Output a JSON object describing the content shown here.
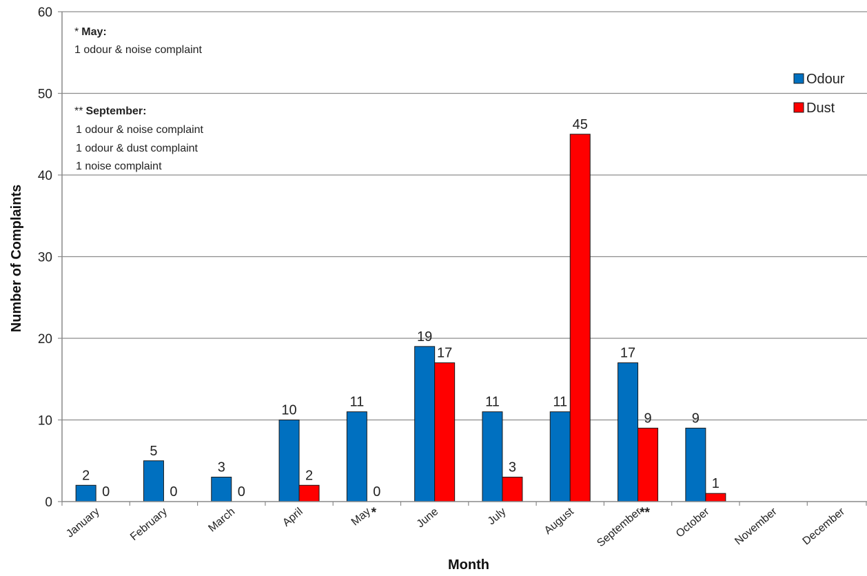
{
  "chart_data": {
    "type": "bar",
    "title": "",
    "xlabel": "Month",
    "ylabel": "Number of Complaints",
    "ylim": [
      0,
      60
    ],
    "yticks": [
      0,
      10,
      20,
      30,
      40,
      50,
      60
    ],
    "grid": true,
    "legend_position": "top-right",
    "categories": [
      "January",
      "February",
      "March",
      "April",
      "May",
      "June",
      "July",
      "August",
      "September",
      "October",
      "November",
      "December"
    ],
    "category_markers": {
      "May": "*",
      "September": "**"
    },
    "series": [
      {
        "name": "Odour",
        "color": "#0070C0",
        "values": [
          2,
          5,
          3,
          10,
          11,
          19,
          11,
          11,
          17,
          9,
          null,
          null
        ]
      },
      {
        "name": "Dust",
        "color": "#FF0000",
        "values": [
          0,
          0,
          0,
          2,
          0,
          17,
          3,
          45,
          9,
          1,
          null,
          null
        ]
      }
    ],
    "annotations": {
      "may": {
        "marker": "*",
        "heading": "May:",
        "lines": [
          "1 odour & noise complaint"
        ]
      },
      "september": {
        "marker": "**",
        "heading": "September:",
        "lines": [
          "1 odour & noise complaint",
          "1 odour & dust complaint",
          "1 noise complaint"
        ]
      }
    }
  }
}
